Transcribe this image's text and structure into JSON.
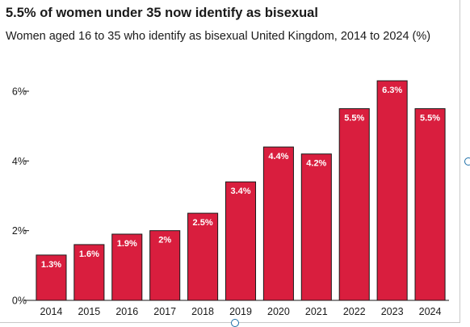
{
  "chart_data": {
    "type": "bar",
    "title": "5.5% of women under 35 now identify as bisexual",
    "subtitle": "Women aged 16 to 35 who identify as bisexual United Kingdom, 2014 to 2024 (%)",
    "categories": [
      "2014",
      "2015",
      "2016",
      "2017",
      "2018",
      "2019",
      "2020",
      "2021",
      "2022",
      "2023",
      "2024"
    ],
    "values": [
      1.3,
      1.6,
      1.9,
      2.0,
      2.5,
      3.4,
      4.4,
      4.2,
      5.5,
      6.3,
      5.5
    ],
    "value_labels": [
      "1.3%",
      "1.6%",
      "1.9%",
      "2%",
      "2.5%",
      "3.4%",
      "4.4%",
      "4.2%",
      "5.5%",
      "6.3%",
      "5.5%"
    ],
    "yticks": [
      0,
      2,
      4,
      6
    ],
    "ytick_labels": [
      "0%",
      "2%",
      "4%",
      "6%"
    ],
    "ylim": [
      0,
      6
    ],
    "grid": false,
    "bar_color": "#d91e3e",
    "bar_edge_color": "#1a1a1a",
    "label_color": "#ffffff"
  }
}
